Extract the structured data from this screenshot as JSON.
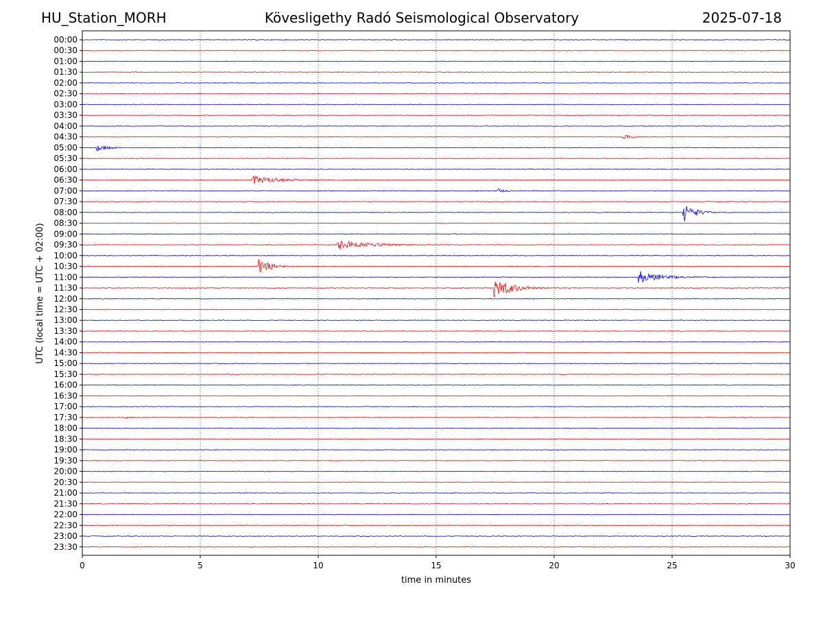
{
  "header": {
    "station": "HU_Station_MORH",
    "title": "Kövesligethy Radó Seismological Observatory",
    "date": "2025-07-18"
  },
  "chart_data": {
    "type": "line",
    "title": "Kövesligethy Radó Seismological Observatory",
    "xlabel": "time in minutes",
    "ylabel": "UTC (local time = UTC + 02:00)",
    "xlim": [
      0,
      30
    ],
    "x_ticks": [
      0,
      5,
      10,
      15,
      20,
      25,
      30
    ],
    "row_labels": [
      "00:00",
      "00:30",
      "01:00",
      "01:30",
      "02:00",
      "02:30",
      "03:00",
      "03:30",
      "04:00",
      "04:30",
      "05:00",
      "05:30",
      "06:00",
      "06:30",
      "07:00",
      "07:30",
      "08:00",
      "08:30",
      "09:00",
      "09:30",
      "10:00",
      "10:30",
      "11:00",
      "11:30",
      "12:00",
      "12:30",
      "13:00",
      "13:30",
      "14:00",
      "14:30",
      "15:00",
      "15:30",
      "16:00",
      "16:30",
      "17:00",
      "17:30",
      "18:00",
      "18:30",
      "19:00",
      "19:30",
      "20:00",
      "20:30",
      "21:00",
      "21:30",
      "22:00",
      "22:30",
      "23:00",
      "23:30"
    ],
    "row_colors": [
      "#0000ff",
      "#ff0000"
    ],
    "vertical_grid_dotted": true,
    "events": [
      {
        "row": "04:30",
        "start_min": 22.8,
        "duration_min": 2.0,
        "amplitude": 0.25
      },
      {
        "row": "05:00",
        "start_min": 0.6,
        "duration_min": 2.0,
        "amplitude": 0.3
      },
      {
        "row": "06:30",
        "start_min": 7.2,
        "duration_min": 3.5,
        "amplitude": 0.45
      },
      {
        "row": "07:00",
        "start_min": 17.6,
        "duration_min": 1.5,
        "amplitude": 0.2
      },
      {
        "row": "08:00",
        "start_min": 25.45,
        "duration_min": 1.6,
        "amplitude": 1.0
      },
      {
        "row": "09:30",
        "start_min": 10.8,
        "duration_min": 5.0,
        "amplitude": 0.45
      },
      {
        "row": "10:30",
        "start_min": 7.45,
        "duration_min": 2.0,
        "amplitude": 0.65
      },
      {
        "row": "11:00",
        "start_min": 23.55,
        "duration_min": 3.5,
        "amplitude": 0.55
      },
      {
        "row": "11:30",
        "start_min": 17.4,
        "duration_min": 2.8,
        "amplitude": 0.95
      },
      {
        "row": "17:30",
        "start_min": 1.8,
        "duration_min": 0.8,
        "amplitude": 0.2
      }
    ]
  }
}
